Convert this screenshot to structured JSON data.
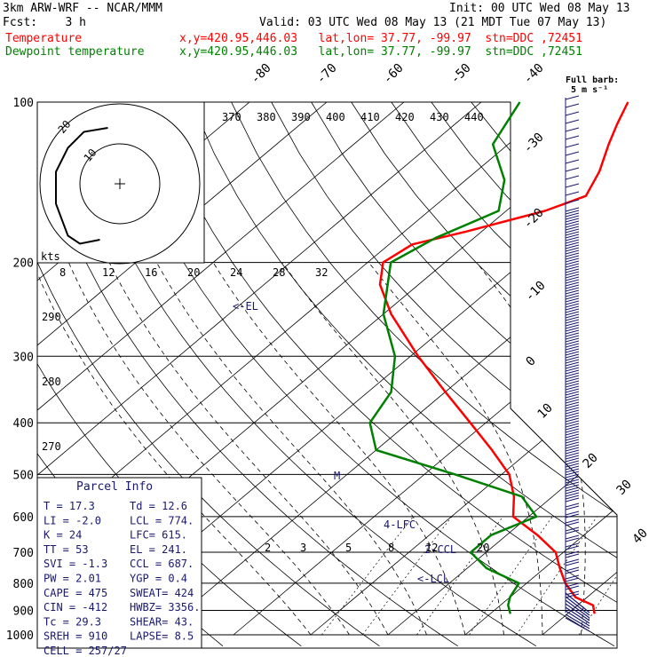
{
  "header": {
    "model": "3km ARW-WRF -- NCAR/MMM",
    "forecast": "Fcst:    3 h",
    "init": "Init: 00 UTC Wed 08 May 13",
    "valid": "Valid: 03 UTC Wed 08 May 13 (21 MDT Tue 07 May 13)",
    "temp_label": "Temperature",
    "dew_label": "Dewpoint temperature",
    "location": "x,y=420.95,446.03   lat,lon= 37.77, -99.97  stn=DDC ,72451"
  },
  "colors": {
    "temperature": "#ff0000",
    "dewpoint": "#008000",
    "wind": "#191970",
    "text": "#000000",
    "parcel_text": "#191970"
  },
  "chart_data": {
    "type": "line",
    "skewt": true,
    "y_scale": "log",
    "ylim": [
      1000,
      100
    ],
    "pressure_ticks": [
      "100",
      "200",
      "300",
      "400",
      "500",
      "600",
      "700",
      "800",
      "900",
      "1000"
    ],
    "isotherm_labels": [
      "-80",
      "-70",
      "-60",
      "-50",
      "-40",
      "-30",
      "-20",
      "-10",
      "0",
      "10",
      "20",
      "30",
      "40"
    ],
    "theta_e_labels": [
      "370",
      "380",
      "390",
      "400",
      "410",
      "420",
      "430",
      "440"
    ],
    "mixing_ratio_labels": [
      "2",
      "3",
      "5",
      "8",
      "12",
      "20"
    ],
    "dry_adiabat_labels": [
      "290",
      "280",
      "270"
    ],
    "hodo_speed_labels": [
      "8",
      "12",
      "16",
      "20",
      "24",
      "28",
      "32"
    ],
    "hodo_ring_labels": [
      "10",
      "20"
    ],
    "hodo_units": "kts",
    "full_barb_note": [
      "Full barb:",
      "5 m s⁻¹"
    ],
    "level_labels": {
      "el": "<-EL",
      "lfc": "4-LFC",
      "ccl": "2-CCL",
      "lcl": "<-LCL",
      "marker": "M"
    },
    "series": [
      {
        "name": "Temperature",
        "points": [
          [
            913,
            23.5
          ],
          [
            880,
            22
          ],
          [
            850,
            18.5
          ],
          [
            800,
            15
          ],
          [
            750,
            12
          ],
          [
            700,
            9
          ],
          [
            650,
            4
          ],
          [
            600,
            -2
          ],
          [
            550,
            -5
          ],
          [
            500,
            -9
          ],
          [
            450,
            -15
          ],
          [
            400,
            -22
          ],
          [
            350,
            -30
          ],
          [
            300,
            -39
          ],
          [
            250,
            -49
          ],
          [
            220,
            -55
          ],
          [
            200,
            -58
          ],
          [
            185,
            -57
          ],
          [
            175,
            -52
          ],
          [
            160,
            -45
          ],
          [
            150,
            -42
          ],
          [
            135,
            -44
          ],
          [
            120,
            -47
          ],
          [
            110,
            -49
          ],
          [
            100,
            -51
          ]
        ]
      },
      {
        "name": "Dewpoint temperature",
        "points": [
          [
            913,
            12.6
          ],
          [
            880,
            11
          ],
          [
            850,
            10
          ],
          [
            800,
            9
          ],
          [
            750,
            2.5
          ],
          [
            700,
            -2
          ],
          [
            650,
            -2
          ],
          [
            600,
            1
          ],
          [
            550,
            -4
          ],
          [
            500,
            -16
          ],
          [
            450,
            -30
          ],
          [
            400,
            -35
          ],
          [
            350,
            -37
          ],
          [
            300,
            -42
          ],
          [
            250,
            -50
          ],
          [
            200,
            -57
          ],
          [
            180,
            -55
          ],
          [
            160,
            -51
          ],
          [
            140,
            -55
          ],
          [
            120,
            -62
          ],
          [
            100,
            -65
          ]
        ]
      }
    ],
    "hodograph": {
      "points": [
        [
          -5,
          -14
        ],
        [
          -10,
          -15
        ],
        [
          -13,
          -13
        ],
        [
          -16,
          -5
        ],
        [
          -16,
          3
        ],
        [
          -13,
          9
        ],
        [
          -9,
          13
        ],
        [
          -3,
          14
        ]
      ]
    }
  },
  "parcel": {
    "title": "Parcel Info",
    "rows": [
      {
        "l": "T  =    17.3",
        "r": "Td =  12.6"
      },
      {
        "l": "LI =    -2.0",
        "r": "LCL =  774."
      },
      {
        "l": "K  =      24",
        "r": "LFC= 615."
      },
      {
        "l": "TT =      53",
        "r": "EL  =  241."
      },
      {
        "l": "SVI =   -1.3",
        "r": "CCL =  687."
      },
      {
        "l": "PW =    2.01",
        "r": "YGP =   0.4"
      },
      {
        "l": "CAPE =   475",
        "r": "SWEAT=  424"
      },
      {
        "l": "CIN =   -412",
        "r": "HWBZ= 3356."
      },
      {
        "l": "Tc =    29.3",
        "r": "SHEAR=  43."
      },
      {
        "l": "SREH =   910",
        "r": "LAPSE=  8.5"
      },
      {
        "l": "CELL = 257/27",
        "r": ""
      }
    ]
  }
}
